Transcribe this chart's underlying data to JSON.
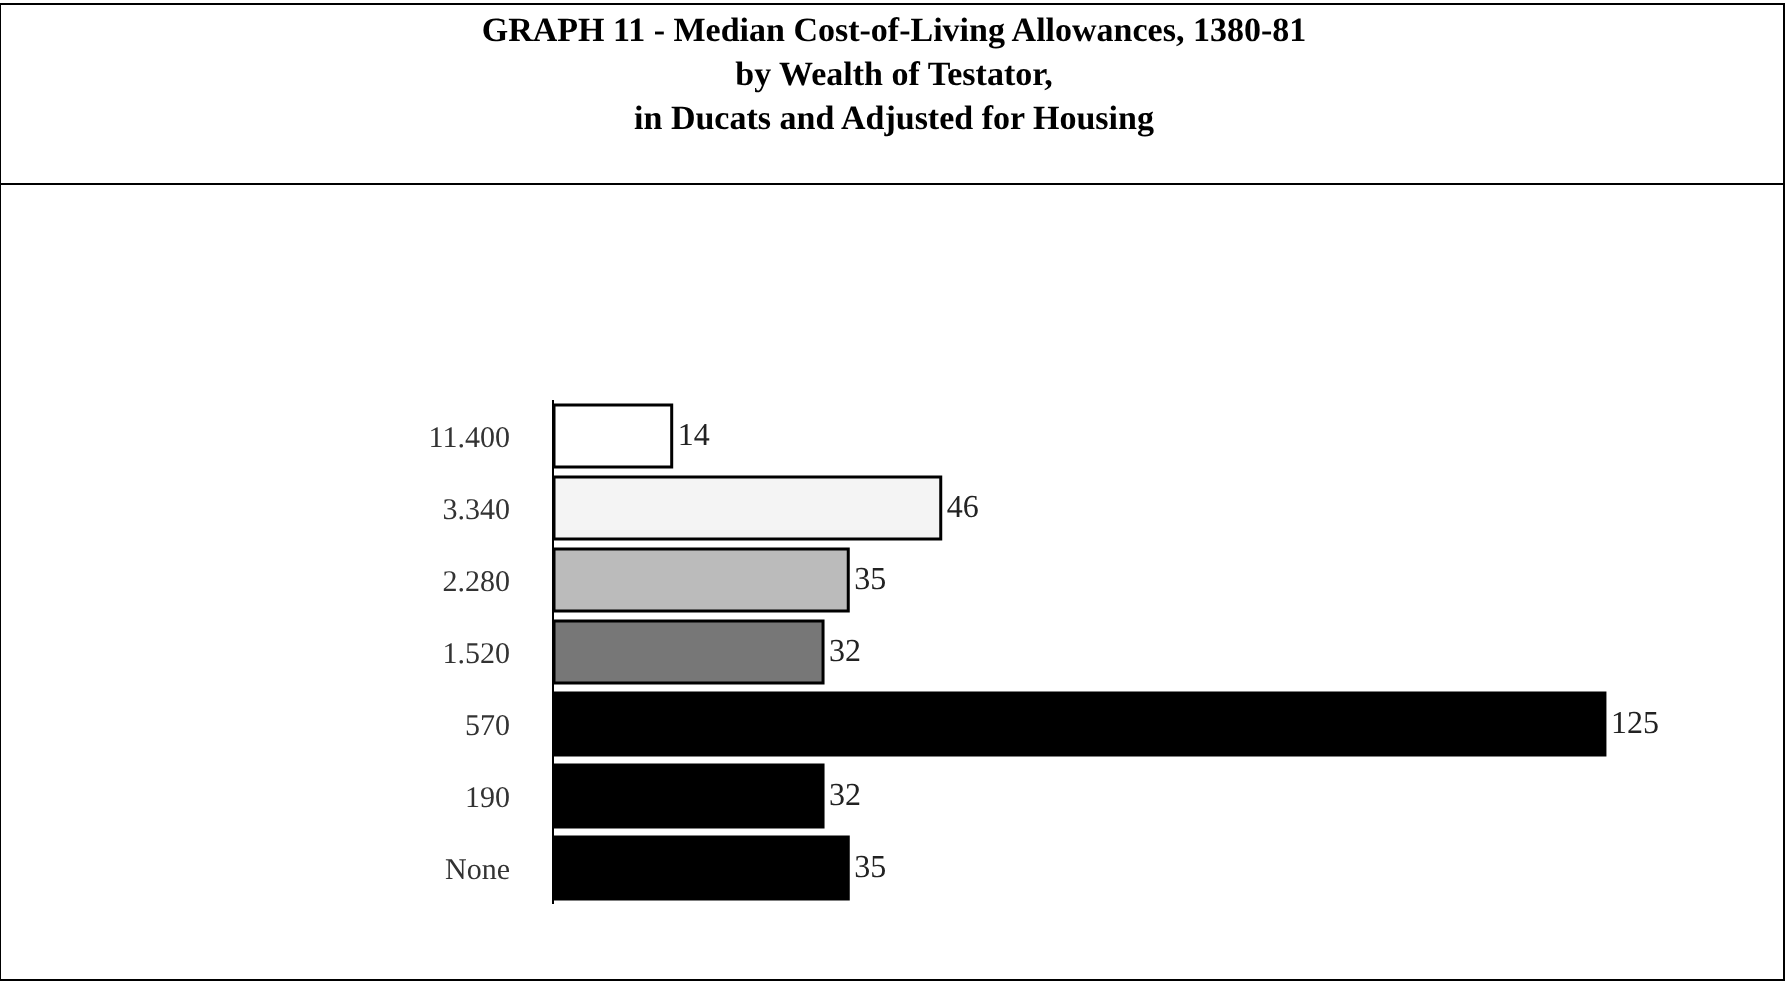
{
  "chart_data": {
    "type": "bar",
    "orientation": "horizontal",
    "title": "GRAPH 11 - Median Cost-of-Living Allowances, 1380-81\nby Wealth of Testator,\nin Ducats and Adjusted for Housing",
    "categories": [
      "11.400",
      "3.340",
      "2.280",
      "1.520",
      "570",
      "190",
      "None"
    ],
    "values": [
      14,
      46,
      35,
      32,
      125,
      32,
      35
    ],
    "colors": [
      "#ffffff",
      "#f4f4f4",
      "#bbbbbb",
      "#777777",
      "#000000",
      "#000000",
      "#000000"
    ],
    "data_labels": true
  }
}
